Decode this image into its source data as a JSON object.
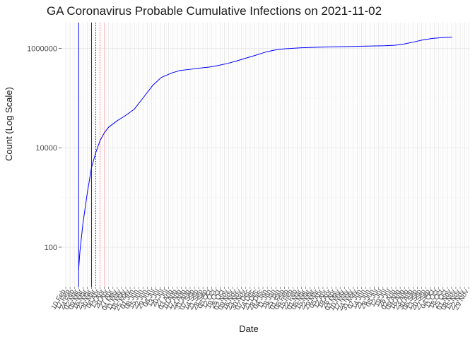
{
  "chart_data": {
    "type": "line",
    "title": "GA Coronavirus Probable Cumulative Infections on 2021-11-02",
    "xlabel": "Date",
    "ylabel": "Count (Log Scale)",
    "y_scale": "log10",
    "ylim": [
      16,
      3300000
    ],
    "grid": true,
    "legend": "none",
    "x_ticks": [
      "10 Feb",
      "17 Feb",
      "24 Feb",
      "02 Mar",
      "09 Mar",
      "16 Mar",
      "23 Mar",
      "30 Mar",
      "06 Apr",
      "13 Apr",
      "20 Apr",
      "27 Apr",
      "04 May",
      "11 May",
      "18 May",
      "25 May",
      "01 Jun",
      "08 Jun",
      "15 Jun",
      "22 Jun",
      "29 Jun",
      "06 Jul",
      "13 Jul",
      "20 Jul",
      "27 Jul",
      "03 Aug",
      "10 Aug",
      "17 Aug",
      "24 Aug",
      "31 Aug",
      "07 Sep",
      "14 Sep",
      "21 Sep",
      "28 Sep",
      "05 Oct",
      "12 Oct",
      "19 Oct",
      "26 Oct",
      "02 Nov",
      "09 Nov",
      "16 Nov",
      "23 Nov",
      "30 Nov",
      "07 Dec",
      "14 Dec",
      "21 Dec",
      "28 Dec",
      "04 Jan",
      "11 Jan",
      "18 Jan",
      "25 Jan",
      "01 Feb",
      "08 Feb",
      "15 Feb",
      "22 Feb",
      "01 Mar",
      "08 Mar",
      "15 Mar",
      "22 Mar",
      "29 Mar",
      "05 Apr",
      "12 Apr",
      "19 Apr",
      "26 Apr",
      "03 May",
      "10 May",
      "17 May",
      "24 May",
      "31 May",
      "07 Jun",
      "14 Jun",
      "21 Jun",
      "28 Jun",
      "05 Jul",
      "12 Jul",
      "19 Jul",
      "26 Jul",
      "02 Aug",
      "09 Aug",
      "16 Aug",
      "23 Aug",
      "30 Aug",
      "06 Sep",
      "13 Sep",
      "20 Sep",
      "27 Sep",
      "04 Oct",
      "11 Oct",
      "18 Oct",
      "25 Oct",
      "01 Nov",
      "08 Nov",
      "15 Nov",
      "22 Nov",
      "29 Nov"
    ],
    "y_ticks": [
      {
        "value": 100,
        "label": "100"
      },
      {
        "value": 10000,
        "label": "10000"
      },
      {
        "value": 1000000,
        "label": "1000000"
      }
    ],
    "series": [
      {
        "color": "#0000ff",
        "x": [
          "2020-03-02",
          "2020-03-04",
          "2020-03-09",
          "2020-03-16",
          "2020-03-23",
          "2020-03-30",
          "2020-04-06",
          "2020-04-13",
          "2020-04-20",
          "2020-05-04",
          "2020-05-18",
          "2020-06-01",
          "2020-06-15",
          "2020-07-01",
          "2020-07-15",
          "2020-08-01",
          "2020-08-15",
          "2020-09-01",
          "2020-09-15",
          "2020-10-01",
          "2020-10-15",
          "2020-11-01",
          "2020-11-15",
          "2020-12-01",
          "2020-12-15",
          "2021-01-01",
          "2021-01-15",
          "2021-02-01",
          "2021-03-01",
          "2021-04-01",
          "2021-05-01",
          "2021-06-01",
          "2021-07-01",
          "2021-07-15",
          "2021-08-01",
          "2021-08-15",
          "2021-09-01",
          "2021-09-15",
          "2021-10-01",
          "2021-10-15",
          "2021-11-02"
        ],
        "y": [
          35,
          80,
          300,
          1200,
          4000,
          8000,
          14000,
          20000,
          26000,
          35000,
          45000,
          60000,
          100000,
          180000,
          260000,
          320000,
          360000,
          380000,
          400000,
          420000,
          450000,
          500000,
          560000,
          640000,
          720000,
          840000,
          920000,
          980000,
          1030000,
          1060000,
          1080000,
          1100000,
          1120000,
          1130000,
          1160000,
          1220000,
          1350000,
          1480000,
          1590000,
          1640000,
          1680000
        ]
      }
    ],
    "reference_lines": [
      {
        "x": "2020-03-02",
        "color": "#0000ff",
        "style": "solid"
      },
      {
        "x": "2020-03-23",
        "color": "#8b0000",
        "style": "solid"
      },
      {
        "x": "2020-03-30",
        "color": "#8b0000",
        "style": "dotted"
      },
      {
        "x": "2020-04-06",
        "color": "#ff6a6a",
        "style": "dotted"
      },
      {
        "x": "2020-04-13",
        "color": "#ffb6c1",
        "style": "solid"
      }
    ]
  }
}
